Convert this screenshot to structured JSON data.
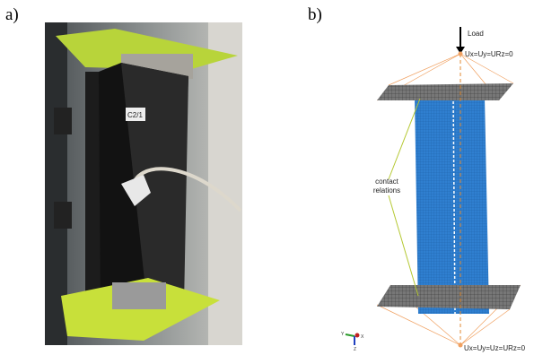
{
  "labels": {
    "a": "a)",
    "b": "b)"
  },
  "model": {
    "load": "Load",
    "top_bc": "Ux=Uy=URz=0",
    "contact": [
      "contact",
      "relations"
    ],
    "bottom_bc": "Ux=Uy=Uz=URz=0",
    "axes": [
      "Y",
      "X",
      "Z"
    ]
  }
}
